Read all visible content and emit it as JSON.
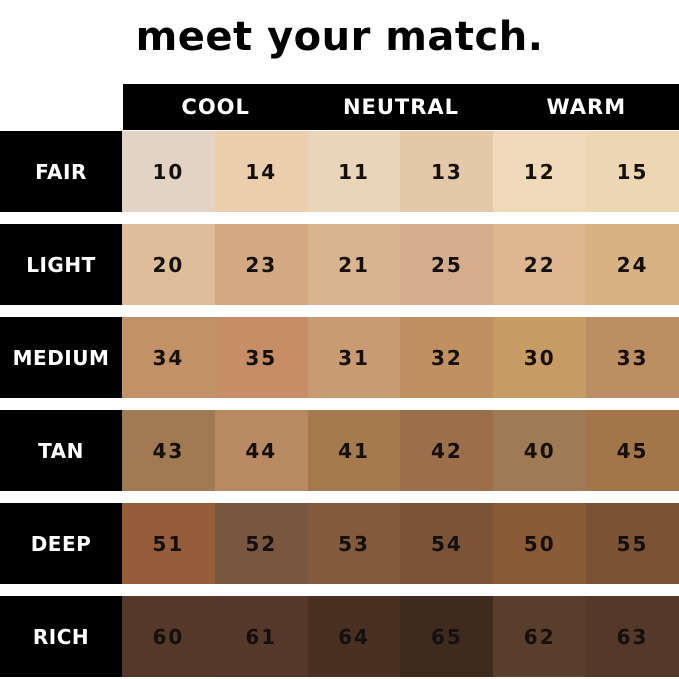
{
  "title": "meet your match.",
  "columns": [
    "COOL",
    "NEUTRAL",
    "WARM"
  ],
  "rows": [
    {
      "label": "FAIR",
      "shades": [
        {
          "code": "10",
          "color": "#e3d3c5"
        },
        {
          "code": "14",
          "color": "#ebcfac"
        },
        {
          "code": "11",
          "color": "#e9d5b8"
        },
        {
          "code": "13",
          "color": "#e3c9a8"
        },
        {
          "code": "12",
          "color": "#efd9b8"
        },
        {
          "code": "15",
          "color": "#ecd6b3"
        }
      ]
    },
    {
      "label": "LIGHT",
      "shades": [
        {
          "code": "20",
          "color": "#dfbd9a"
        },
        {
          "code": "23",
          "color": "#d3a982"
        },
        {
          "code": "21",
          "color": "#d8b48f"
        },
        {
          "code": "25",
          "color": "#d4ad8c"
        },
        {
          "code": "22",
          "color": "#ddb690"
        },
        {
          "code": "24",
          "color": "#d7b384"
        }
      ]
    },
    {
      "label": "MEDIUM",
      "shades": [
        {
          "code": "34",
          "color": "#c29168"
        },
        {
          "code": "35",
          "color": "#c78d66"
        },
        {
          "code": "31",
          "color": "#c99b72"
        },
        {
          "code": "32",
          "color": "#c09060"
        },
        {
          "code": "30",
          "color": "#c69c64"
        },
        {
          "code": "33",
          "color": "#bd8e64"
        }
      ]
    },
    {
      "label": "TAN",
      "shades": [
        {
          "code": "43",
          "color": "#a07a52"
        },
        {
          "code": "44",
          "color": "#b98a62"
        },
        {
          "code": "41",
          "color": "#a47a4e"
        },
        {
          "code": "42",
          "color": "#9d6e4a"
        },
        {
          "code": "40",
          "color": "#9e7a55"
        },
        {
          "code": "45",
          "color": "#a5754a"
        }
      ]
    },
    {
      "label": "DEEP",
      "shades": [
        {
          "code": "51",
          "color": "#975c3a"
        },
        {
          "code": "52",
          "color": "#7a5640"
        },
        {
          "code": "53",
          "color": "#835b3c"
        },
        {
          "code": "54",
          "color": "#7b5438"
        },
        {
          "code": "50",
          "color": "#8b5b38"
        },
        {
          "code": "55",
          "color": "#7a5234"
        }
      ]
    },
    {
      "label": "RICH",
      "shades": [
        {
          "code": "60",
          "color": "#553827"
        },
        {
          "code": "61",
          "color": "#553829"
        },
        {
          "code": "64",
          "color": "#4a3020"
        },
        {
          "code": "65",
          "color": "#3f2a1e"
        },
        {
          "code": "62",
          "color": "#5a3e2c"
        },
        {
          "code": "63",
          "color": "#553928"
        }
      ]
    }
  ]
}
